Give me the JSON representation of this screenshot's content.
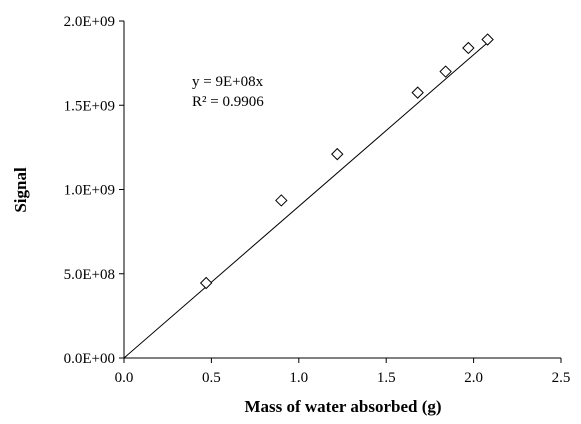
{
  "chart_data": {
    "type": "scatter",
    "title": "",
    "xlabel": "Mass of water absorbed (g)",
    "ylabel": "Signal",
    "xlim": [
      0,
      2.5
    ],
    "ylim": [
      0,
      2000000000
    ],
    "x_ticks": [
      0,
      0.5,
      1.0,
      1.5,
      2.0,
      2.5
    ],
    "x_tick_labels": [
      "0.0",
      "0.5",
      "1.0",
      "1.5",
      "2.0",
      "2.5"
    ],
    "y_ticks": [
      0,
      500000000,
      1000000000,
      1500000000,
      2000000000
    ],
    "y_tick_labels": [
      "0.0E+00",
      "5.0E+08",
      "1.0E+09",
      "1.5E+09",
      "2.0E+09"
    ],
    "grid": false,
    "legend": "none",
    "marker": "open-diamond",
    "series": [
      {
        "x": [
          0.47,
          0.9,
          1.22,
          1.68,
          1.84,
          1.97,
          2.08
        ],
        "y": [
          445000000,
          935000000,
          1210000000,
          1575000000,
          1700000000,
          1840000000,
          1890000000
        ]
      }
    ],
    "trendline": {
      "type": "linear-through-origin",
      "slope": 900000000,
      "x_end": 2.08
    },
    "annotations": [
      "y = 9E+08x",
      "R² = 0.9906"
    ]
  }
}
